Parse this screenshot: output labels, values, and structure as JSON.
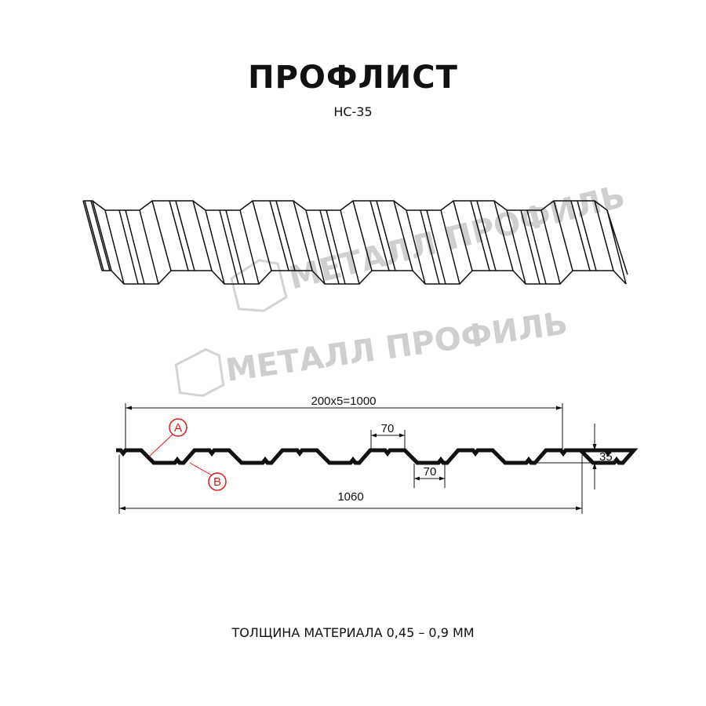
{
  "header": {
    "title": "ПРОФЛИСТ",
    "subtitle": "НС-35"
  },
  "watermark": {
    "text": "МЕТАЛЛ ПРОФИЛЬ",
    "color": "#cfcfcf"
  },
  "dimensions": {
    "pitch_total": "200x5=1000",
    "overall_width": "1060",
    "top_flange": "70",
    "bottom_flange": "70",
    "height": "35"
  },
  "markers": {
    "a": "A",
    "b": "B",
    "color": "#e01818"
  },
  "footer": {
    "thickness": "ТОЛЩИНА МАТЕРИАЛА 0,45 – 0,9 ММ"
  }
}
